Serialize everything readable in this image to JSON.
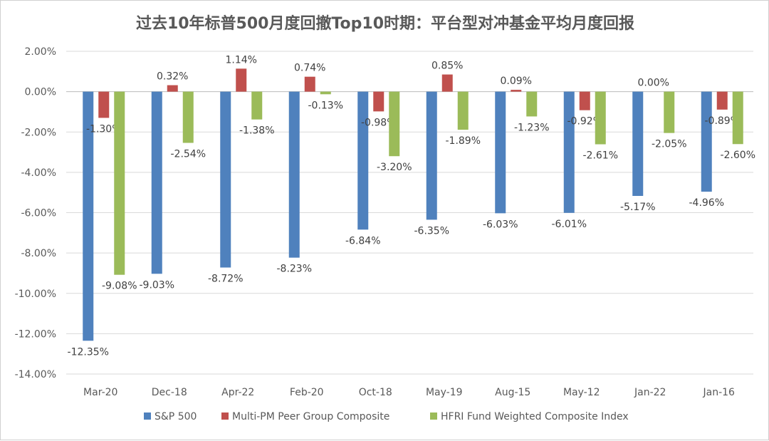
{
  "chart_data": {
    "type": "bar",
    "title": "过去10年标普500月度回撤Top10时期：平台型对冲基金平均月度回报",
    "categories": [
      "Mar-20",
      "Dec-18",
      "Apr-22",
      "Feb-20",
      "Oct-18",
      "May-19",
      "Aug-15",
      "May-12",
      "Jan-22",
      "Jan-16"
    ],
    "series": [
      {
        "name": "S&P 500",
        "color": "#4F81BD",
        "values": [
          -12.35,
          -9.03,
          -8.72,
          -8.23,
          -6.84,
          -6.35,
          -6.03,
          -6.01,
          -5.17,
          -4.96
        ]
      },
      {
        "name": "Multi-PM Peer Group Composite",
        "color": "#C0504D",
        "values": [
          -1.3,
          0.32,
          1.14,
          0.74,
          -0.98,
          0.85,
          0.09,
          -0.92,
          0.0,
          -0.89
        ]
      },
      {
        "name": "HFRI Fund Weighted Composite Index",
        "color": "#9BBB59",
        "values": [
          -9.08,
          -2.54,
          -1.38,
          -0.13,
          -3.2,
          -1.89,
          -1.23,
          -2.61,
          -2.05,
          -2.6
        ]
      }
    ],
    "ylim": [
      -14,
      2
    ],
    "yticks": [
      2,
      0,
      -2,
      -4,
      -6,
      -8,
      -10,
      -12,
      -14
    ],
    "value_format": "percent_2dp",
    "grid": true,
    "legend_position": "bottom"
  }
}
